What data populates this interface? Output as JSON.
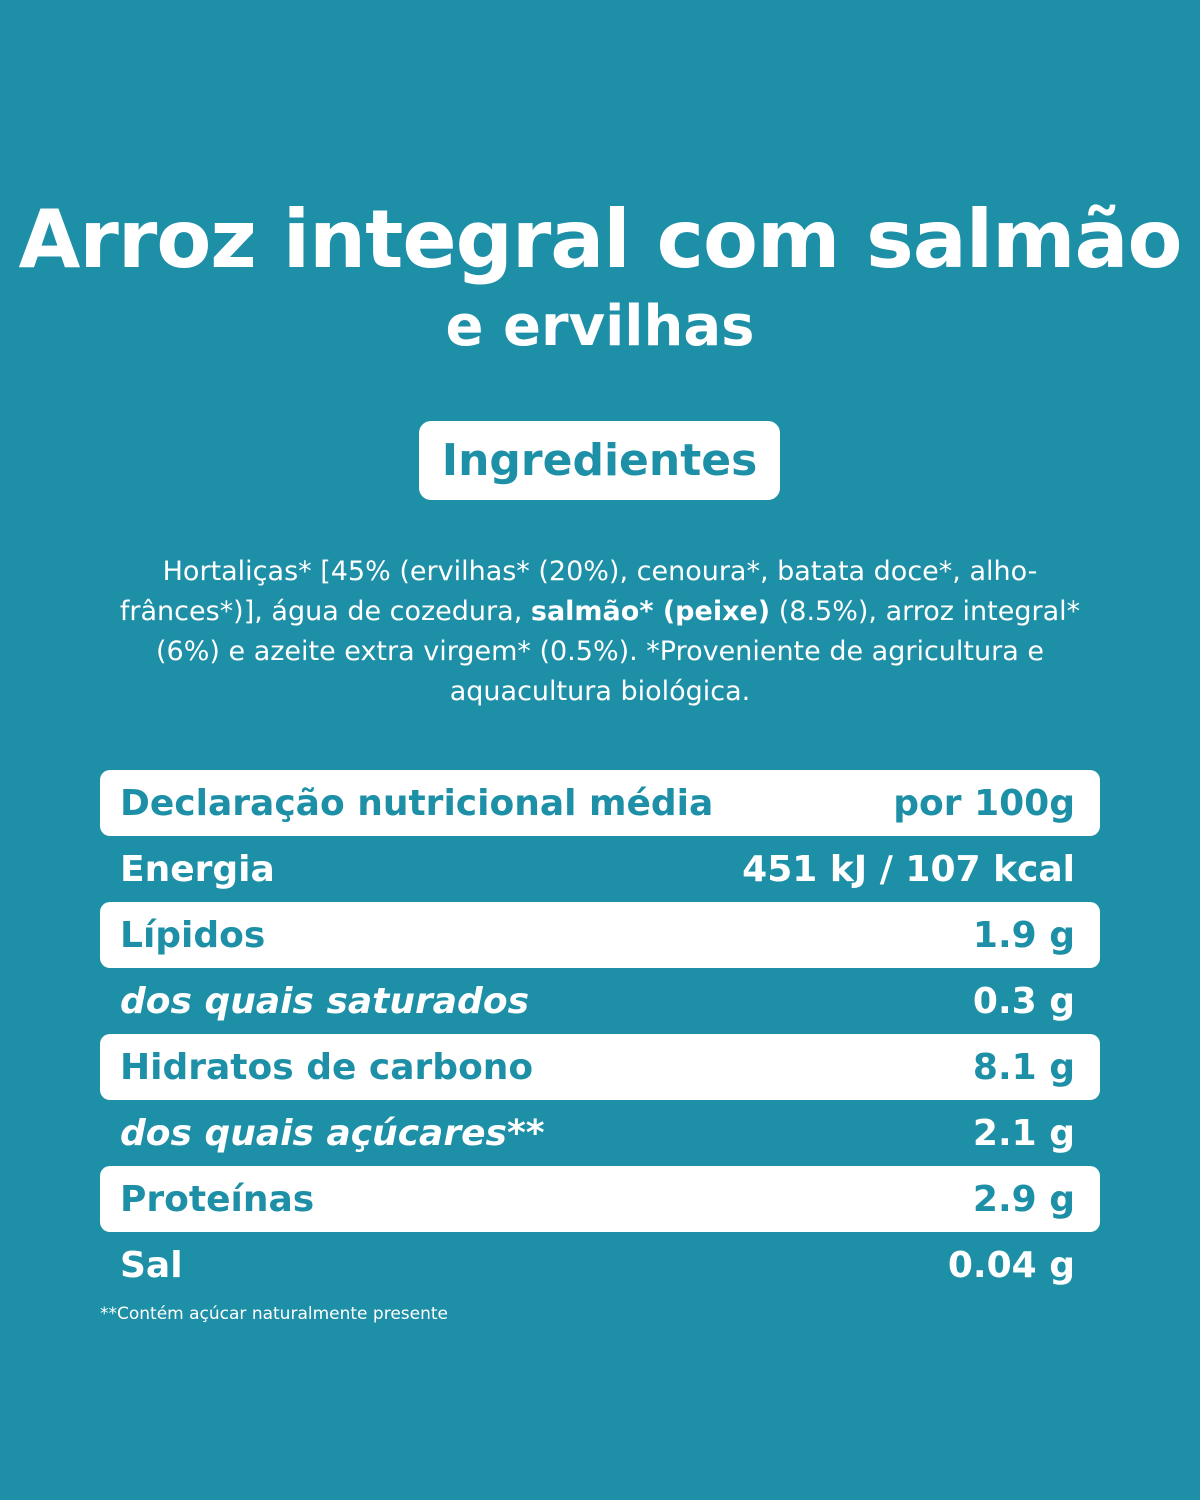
{
  "title": "Arroz integral com salmão",
  "subtitle": "e ervilhas",
  "ingredients_heading": "Ingredientes",
  "ingredients": {
    "part1": "Hortaliças* [45% (ervilhas* (20%), cenoura*, batata doce*, alho-frânces*)], água de cozedura, ",
    "bold": "salmão* (peixe)",
    "part2": " (8.5%), arroz integral* (6%) e azeite extra virgem* (0.5%). *Proveniente de agricultura e aquacultura biológica."
  },
  "nutrition": {
    "header_label": "Declaração nutricional média",
    "header_value": "por 100g",
    "rows": [
      {
        "label": "Energia",
        "value": "451 kJ / 107 kcal"
      },
      {
        "label": "Lípidos",
        "value": "1.9 g"
      },
      {
        "label": "dos quais saturados",
        "value": "0.3 g"
      },
      {
        "label": "Hidratos de carbono",
        "value": "8.1 g"
      },
      {
        "label": "dos quais açúcares**",
        "value": "2.1 g"
      },
      {
        "label": "Proteínas",
        "value": "2.9 g"
      },
      {
        "label": "Sal",
        "value": "0.04 g"
      }
    ]
  },
  "footnote": "**Contém açúcar naturalmente presente",
  "colors": {
    "background": "#1d8fa6",
    "foreground": "#ffffff"
  }
}
